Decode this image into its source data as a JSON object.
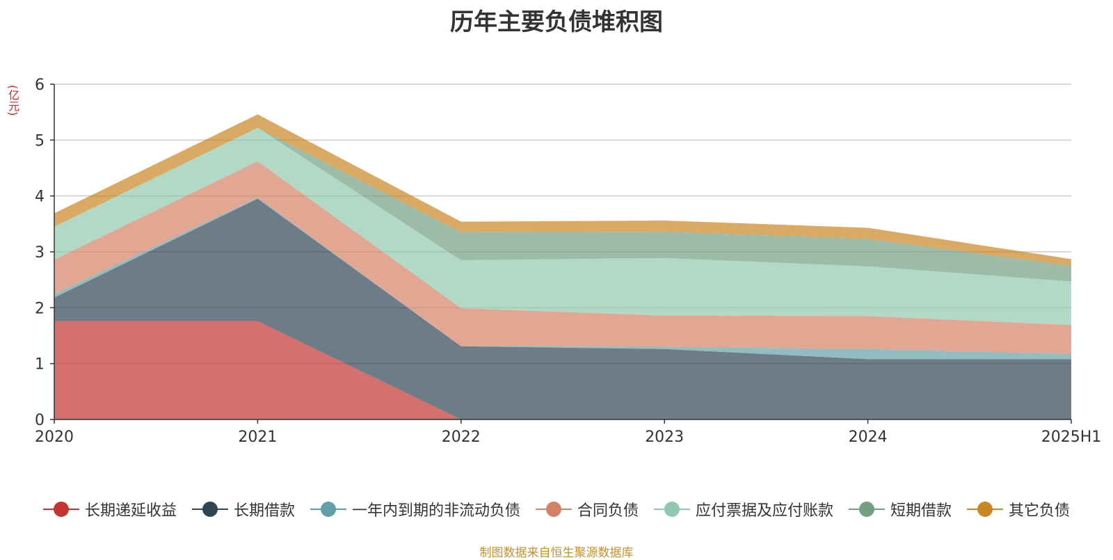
{
  "chart_data": {
    "type": "area",
    "title": "历年主要负债堆积图",
    "unit_label": "(亿元)",
    "source": "制图数据来自恒生聚源数据库",
    "categories": [
      "2020",
      "2021",
      "2022",
      "2023",
      "2024",
      "2025H1"
    ],
    "ylim": [
      0,
      6
    ],
    "yticks": [
      "0",
      "1",
      "2",
      "3",
      "4",
      "5",
      "6"
    ],
    "grid": true,
    "legend_position": "bottom",
    "stacked": true,
    "series": [
      {
        "name": "长期递延收益",
        "color": "#c23531",
        "values": [
          1.76,
          1.76,
          0.0,
          0.0,
          0.0,
          0.0
        ]
      },
      {
        "name": "长期借款",
        "color": "#2f4554",
        "values": [
          0.42,
          2.19,
          1.31,
          1.26,
          1.08,
          1.08
        ]
      },
      {
        "name": "一年内到期的非流动负债",
        "color": "#61a0a8",
        "values": [
          0.06,
          0.02,
          0.0,
          0.04,
          0.18,
          0.09
        ]
      },
      {
        "name": "合同负债",
        "color": "#d48265",
        "values": [
          0.62,
          0.65,
          0.68,
          0.56,
          0.59,
          0.52
        ]
      },
      {
        "name": "应付票据及应付账款",
        "color": "#91c7ae",
        "values": [
          0.59,
          0.6,
          0.86,
          1.03,
          0.89,
          0.78
        ]
      },
      {
        "name": "短期借款",
        "color": "#749f83",
        "values": [
          0.0,
          0.0,
          0.5,
          0.47,
          0.49,
          0.28
        ]
      },
      {
        "name": "其它负债",
        "color": "#ca8622",
        "values": [
          0.24,
          0.24,
          0.19,
          0.2,
          0.2,
          0.12
        ]
      }
    ]
  }
}
